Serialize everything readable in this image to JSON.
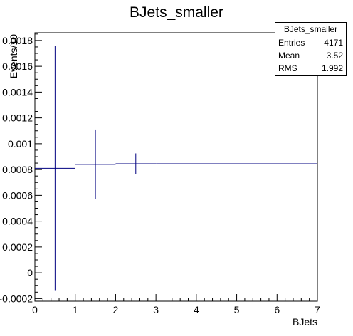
{
  "chart_data": {
    "type": "histogram",
    "title": "BJets_smaller",
    "xlabel": "BJets",
    "ylabel": "Events/10",
    "xlim": [
      0,
      7
    ],
    "ylim": [
      -0.00022,
      0.00186
    ],
    "x_ticks": [
      0,
      1,
      2,
      3,
      4,
      5,
      6,
      7
    ],
    "x_tick_labels": [
      "0",
      "1",
      "2",
      "3",
      "4",
      "5",
      "6",
      "7"
    ],
    "y_ticks": [
      -0.0002,
      0,
      0.0002,
      0.0004,
      0.0006,
      0.0008,
      0.001,
      0.0012,
      0.0014,
      0.0016,
      0.0018
    ],
    "y_tick_labels": [
      "-0.0002",
      "0",
      "0.0002",
      "0.0004",
      "0.0006",
      "0.0008",
      "0.001",
      "0.0012",
      "0.0014",
      "0.0016",
      "0.0018"
    ],
    "bins": [
      {
        "x_low": 0,
        "x_high": 1,
        "value": 0.00081,
        "err_low": 0.00095,
        "err_high": 0.00095
      },
      {
        "x_low": 1,
        "x_high": 2,
        "value": 0.00084,
        "err_low": 0.00027,
        "err_high": 0.00027
      },
      {
        "x_low": 2,
        "x_high": 3,
        "value": 0.000845,
        "err_low": 8e-05,
        "err_high": 8e-05
      },
      {
        "x_low": 3,
        "x_high": 7,
        "value": 0.000845,
        "err_low": 0,
        "err_high": 0
      }
    ],
    "line_color": "#000080",
    "stats": {
      "name": "BJets_smaller",
      "rows": [
        {
          "label": "Entries",
          "value": "4171"
        },
        {
          "label": "Mean",
          "value": "3.52"
        },
        {
          "label": "RMS",
          "value": "1.992"
        }
      ]
    }
  }
}
